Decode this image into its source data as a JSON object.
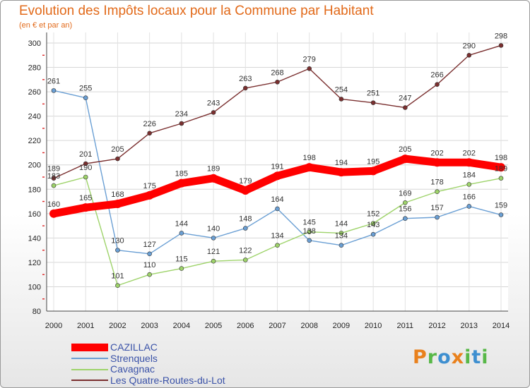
{
  "title": "Evolution des Impôts locaux pour la Commune par Habitant",
  "subtitle": "(en € et par an)",
  "logo": {
    "text": "Proxiti",
    "letters": [
      {
        "ch": "P",
        "color": "#e9811d"
      },
      {
        "ch": "r",
        "color": "#58b848"
      },
      {
        "ch": "o",
        "color": "#3e8fd0"
      },
      {
        "ch": "x",
        "color": "#e9811d"
      },
      {
        "ch": "i",
        "color": "#58b848"
      },
      {
        "ch": "t",
        "color": "#3e8fd0"
      },
      {
        "ch": "i",
        "color": "#58b848"
      }
    ]
  },
  "chart_data": {
    "type": "line",
    "title": "Evolution des Impôts locaux pour la Commune par Habitant",
    "ylabel": "(en € et par an)",
    "xlabel": "",
    "x": [
      "2000",
      "2001",
      "2002",
      "2003",
      "2004",
      "2005",
      "2006",
      "2007",
      "2008",
      "2009",
      "2010",
      "2011",
      "2012",
      "2013",
      "2014"
    ],
    "ylim": [
      80,
      300
    ],
    "yticks": [
      80,
      100,
      120,
      140,
      160,
      180,
      200,
      220,
      240,
      260,
      280,
      300
    ],
    "grid": true,
    "legend_position": "bottom-left",
    "series": [
      {
        "name": "CAZILLAC",
        "color": "#ff0000",
        "emphasis": true,
        "values": [
          160,
          165,
          168,
          175,
          185,
          189,
          179,
          191,
          198,
          194,
          195,
          205,
          202,
          202,
          198
        ]
      },
      {
        "name": "Strenquels",
        "color": "#6a9fd4",
        "emphasis": false,
        "values": [
          261,
          255,
          130,
          127,
          144,
          140,
          148,
          164,
          138,
          134,
          143,
          156,
          157,
          166,
          159
        ]
      },
      {
        "name": "Cavagnac",
        "color": "#9ed36a",
        "emphasis": false,
        "values": [
          183,
          190,
          101,
          110,
          115,
          121,
          122,
          134,
          145,
          144,
          152,
          169,
          178,
          184,
          189
        ]
      },
      {
        "name": "Les Quatre-Routes-du-Lot",
        "color": "#7a2f2f",
        "emphasis": false,
        "values": [
          189,
          201,
          205,
          226,
          234,
          243,
          263,
          268,
          279,
          254,
          251,
          247,
          266,
          290,
          298
        ]
      }
    ]
  }
}
